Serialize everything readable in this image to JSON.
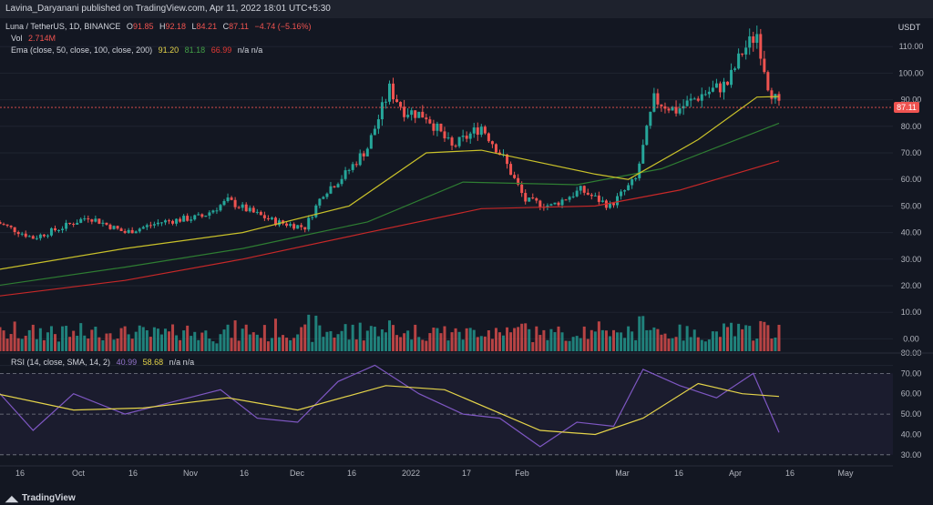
{
  "header": {
    "publisher": "Lavina_Daryanani published on TradingView.com, Apr 11, 2022 18:01 UTC+5:30"
  },
  "legend": {
    "symbol": "Luna / TetherUS, 1D, BINANCE",
    "o_label": "O",
    "o": "91.85",
    "h_label": "H",
    "h": "92.18",
    "l_label": "L",
    "l": "84.21",
    "c_label": "C",
    "c": "87.11",
    "change": "−4.74 (−5.16%)",
    "vol_label": "Vol",
    "vol": "2.714M",
    "ema_label": "Ema (close, 50, close, 100, close, 200)",
    "ema1": "91.20",
    "ema2": "81.18",
    "ema3": "66.99",
    "na": "n/a  n/a",
    "rsi_label": "RSI (14, close, SMA, 14, 2)",
    "rsi1": "40.99",
    "rsi2": "58.68",
    "rsi_na": "n/a  n/a"
  },
  "price_axis": {
    "currency": "USDT",
    "ticks": [
      "110.00",
      "100.00",
      "90.00",
      "80.00",
      "70.00",
      "60.00",
      "50.00",
      "40.00",
      "30.00",
      "20.00",
      "10.00",
      "0.00"
    ],
    "last": "87.11"
  },
  "rsi_axis": {
    "ticks": [
      "80.00",
      "70.00",
      "60.00",
      "50.00",
      "40.00",
      "30.00"
    ]
  },
  "time_axis": [
    "16",
    "Oct",
    "16",
    "Nov",
    "16",
    "Dec",
    "16",
    "2022",
    "17",
    "Feb",
    "Mar",
    "16",
    "Apr",
    "16",
    "May"
  ],
  "footer": {
    "brand": "TradingView"
  },
  "colors": {
    "up": "#26a69a",
    "down": "#ef5350",
    "ema50": "#c9c12a",
    "ema100": "#2e7d32",
    "ema200": "#c62828",
    "rsi": "#7e57c2",
    "rsi_sma": "#e5d44a",
    "bg": "#131722"
  },
  "chart_data": {
    "type": "candlestick",
    "x_range": [
      "Sep 11, 2021",
      "May 12, 2022"
    ],
    "price_ylim": [
      -5,
      120
    ],
    "rsi_ylim": [
      25,
      80
    ],
    "rsi_levels": [
      70,
      50,
      30
    ],
    "close_path": [
      [
        "2021-09-10",
        44
      ],
      [
        "2021-09-20",
        38
      ],
      [
        "2021-09-28",
        42
      ],
      [
        "2021-10-05",
        46
      ],
      [
        "2021-10-15",
        40
      ],
      [
        "2021-10-25",
        44
      ],
      [
        "2021-11-05",
        46
      ],
      [
        "2021-11-12",
        52
      ],
      [
        "2021-11-18",
        48
      ],
      [
        "2021-11-25",
        44
      ],
      [
        "2021-12-03",
        42
      ],
      [
        "2021-12-08",
        55
      ],
      [
        "2021-12-14",
        62
      ],
      [
        "2021-12-20",
        72
      ],
      [
        "2021-12-26",
        94
      ],
      [
        "2021-12-30",
        86
      ],
      [
        "2022-01-05",
        84
      ],
      [
        "2022-01-12",
        72
      ],
      [
        "2022-01-20",
        80
      ],
      [
        "2022-01-26",
        68
      ],
      [
        "2022-02-01",
        52
      ],
      [
        "2022-02-08",
        50
      ],
      [
        "2022-02-16",
        56
      ],
      [
        "2022-02-24",
        50
      ],
      [
        "2022-03-03",
        60
      ],
      [
        "2022-03-08",
        90
      ],
      [
        "2022-03-14",
        86
      ],
      [
        "2022-03-21",
        92
      ],
      [
        "2022-03-28",
        96
      ],
      [
        "2022-04-01",
        108
      ],
      [
        "2022-04-05",
        115
      ],
      [
        "2022-04-08",
        96
      ],
      [
        "2022-04-11",
        87.11
      ]
    ],
    "ema50_path": [
      [
        "2021-09-10",
        26
      ],
      [
        "2021-10-15",
        34
      ],
      [
        "2021-11-16",
        40
      ],
      [
        "2021-12-15",
        50
      ],
      [
        "2022-01-05",
        70
      ],
      [
        "2022-01-20",
        71
      ],
      [
        "2022-02-20",
        62
      ],
      [
        "2022-03-01",
        60
      ],
      [
        "2022-03-20",
        75
      ],
      [
        "2022-04-05",
        91
      ],
      [
        "2022-04-11",
        91.2
      ]
    ],
    "ema100_path": [
      [
        "2021-09-10",
        20
      ],
      [
        "2021-10-15",
        27
      ],
      [
        "2021-11-16",
        34
      ],
      [
        "2021-12-20",
        44
      ],
      [
        "2022-01-15",
        59
      ],
      [
        "2022-02-15",
        58
      ],
      [
        "2022-03-10",
        64
      ],
      [
        "2022-04-11",
        81.18
      ]
    ],
    "ema200_path": [
      [
        "2021-09-10",
        16
      ],
      [
        "2021-10-15",
        22
      ],
      [
        "2021-11-16",
        30
      ],
      [
        "2021-12-20",
        40
      ],
      [
        "2022-01-20",
        49
      ],
      [
        "2022-02-20",
        50
      ],
      [
        "2022-03-15",
        56
      ],
      [
        "2022-04-11",
        66.99
      ]
    ],
    "rsi_path": [
      [
        "2021-09-10",
        62
      ],
      [
        "2021-09-20",
        42
      ],
      [
        "2021-10-01",
        60
      ],
      [
        "2021-10-15",
        50
      ],
      [
        "2021-10-28",
        56
      ],
      [
        "2021-11-10",
        62
      ],
      [
        "2021-11-20",
        48
      ],
      [
        "2021-12-01",
        46
      ],
      [
        "2021-12-12",
        66
      ],
      [
        "2021-12-22",
        74
      ],
      [
        "2022-01-03",
        60
      ],
      [
        "2022-01-15",
        50
      ],
      [
        "2022-01-25",
        48
      ],
      [
        "2022-02-05",
        34
      ],
      [
        "2022-02-15",
        46
      ],
      [
        "2022-02-25",
        44
      ],
      [
        "2022-03-05",
        72
      ],
      [
        "2022-03-15",
        64
      ],
      [
        "2022-03-25",
        58
      ],
      [
        "2022-04-04",
        70
      ],
      [
        "2022-04-11",
        40.99
      ]
    ],
    "rsi_sma_path": [
      [
        "2021-09-10",
        60
      ],
      [
        "2021-10-01",
        52
      ],
      [
        "2021-10-20",
        53
      ],
      [
        "2021-11-12",
        58
      ],
      [
        "2021-12-01",
        52
      ],
      [
        "2021-12-25",
        64
      ],
      [
        "2022-01-10",
        62
      ],
      [
        "2022-02-05",
        42
      ],
      [
        "2022-02-20",
        40
      ],
      [
        "2022-03-05",
        48
      ],
      [
        "2022-03-20",
        65
      ],
      [
        "2022-04-01",
        60
      ],
      [
        "2022-04-11",
        58.68
      ]
    ],
    "volume_axis_note": "volume shown as histogram bars beneath price"
  }
}
